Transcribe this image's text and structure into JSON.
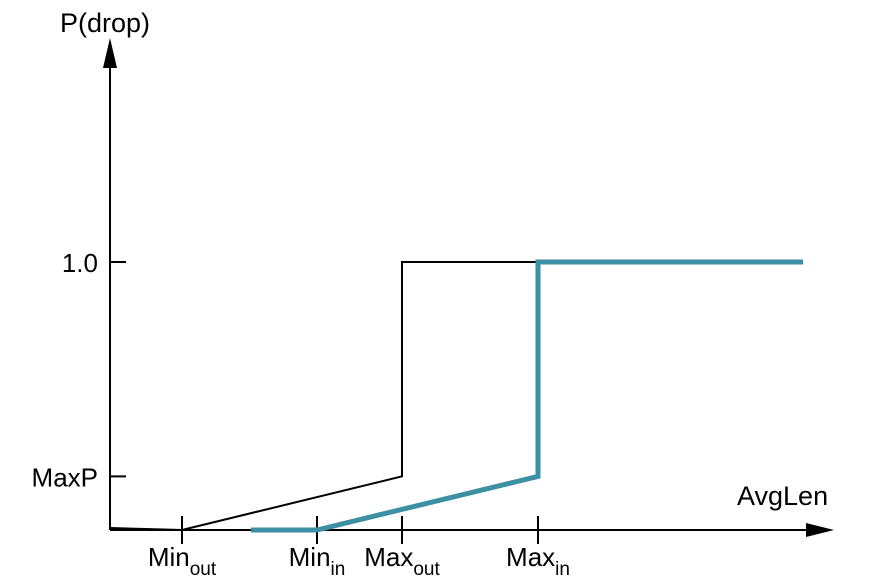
{
  "chart_data": {
    "type": "line",
    "ylabel": "P(drop)",
    "xlabel": "AvgLen",
    "x_ticks": [
      {
        "id": "min_out",
        "base": "Min",
        "sub": "out"
      },
      {
        "id": "min_in",
        "base": "Min",
        "sub": "in"
      },
      {
        "id": "max_out",
        "base": "Max",
        "sub": "out"
      },
      {
        "id": "max_in",
        "base": "Max",
        "sub": "in"
      }
    ],
    "y_ticks": [
      {
        "id": "maxp",
        "label": "MaxP",
        "value": 0.2
      },
      {
        "id": "one",
        "label": "1.0",
        "value": 1.0
      }
    ],
    "series": [
      {
        "id": "out",
        "color": "#000000",
        "points": [
          {
            "x": "start",
            "y": 0.0
          },
          {
            "x": "min_out",
            "y": 0.0
          },
          {
            "x": "max_out",
            "y": 0.2
          },
          {
            "x": "max_out",
            "y": 1.0
          },
          {
            "x": "end",
            "y": 1.0
          }
        ]
      },
      {
        "id": "in",
        "color": "#3d8fa3",
        "points": [
          {
            "x": "pre_min_in",
            "y": 0.0
          },
          {
            "x": "min_in",
            "y": 0.0
          },
          {
            "x": "max_in",
            "y": 0.2
          },
          {
            "x": "max_in",
            "y": 1.0
          },
          {
            "x": "end",
            "y": 1.0
          }
        ]
      }
    ]
  }
}
